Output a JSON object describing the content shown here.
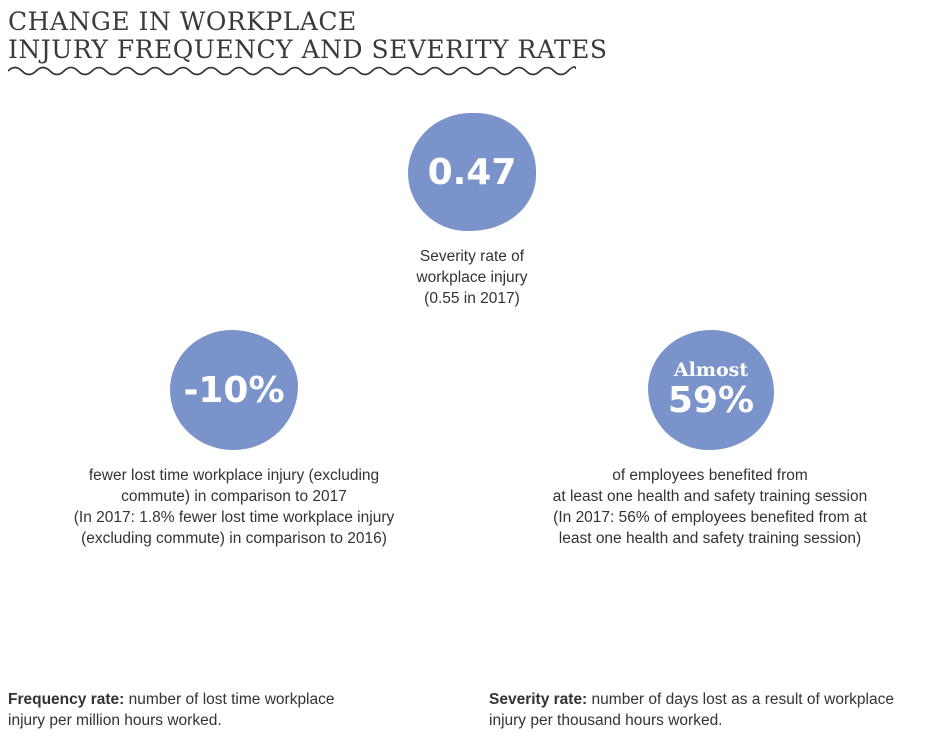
{
  "header": {
    "title_line1": "CHANGE IN WORKPLACE",
    "title_line2": "INJURY FREQUENCY AND SEVERITY RATES"
  },
  "colors": {
    "accent_blob": "#7b93cb",
    "text": "#333333"
  },
  "stats": {
    "severity": {
      "value": "0.47",
      "caption_line1": "Severity rate of",
      "caption_line2": "workplace injury",
      "caption_line3": "(0.55 in 2017)"
    },
    "frequency": {
      "value": "-10%",
      "caption_line1": "fewer lost time workplace injury (excluding",
      "caption_line2": "commute) in comparison to 2017",
      "caption_line3": "(In 2017: 1.8% fewer lost time workplace injury",
      "caption_line4": "(excluding commute) in comparison to 2016)"
    },
    "training": {
      "prefix": "Almost",
      "value": "59%",
      "caption_line1": "of employees benefited from",
      "caption_line2": "at least one health and safety training session",
      "caption_line3": "(In 2017: 56% of employees benefited from at",
      "caption_line4": "least one health and safety training session)"
    }
  },
  "footnotes": {
    "frequency_term": "Frequency rate:",
    "frequency_def_line1": " number of lost time workplace",
    "frequency_def_line2": "injury per million hours worked.",
    "severity_term": "Severity rate:",
    "severity_def_line1": " number of days lost as a result of workplace",
    "severity_def_line2": "injury per thousand hours worked."
  }
}
